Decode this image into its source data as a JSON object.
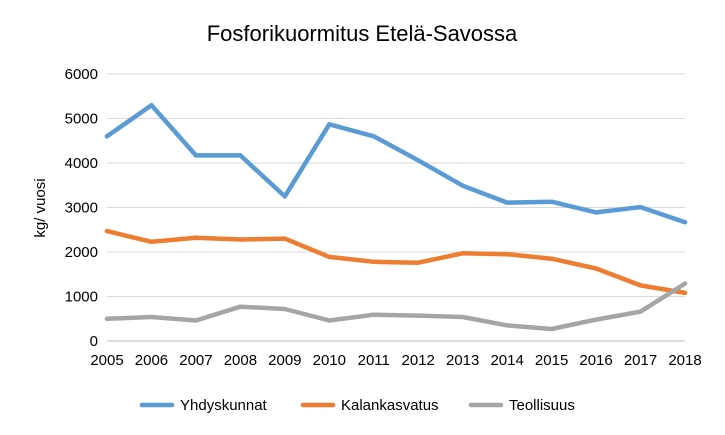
{
  "chart_data": {
    "type": "line",
    "title": "Fosforikuormitus Etelä-Savossa",
    "xlabel": "",
    "ylabel": "kg/ vuosi",
    "x": [
      2005,
      2006,
      2007,
      2008,
      2009,
      2010,
      2011,
      2012,
      2013,
      2014,
      2015,
      2016,
      2017,
      2018
    ],
    "ylim": [
      0,
      6000
    ],
    "yticks": [
      0,
      1000,
      2000,
      3000,
      4000,
      5000,
      6000
    ],
    "grid": true,
    "legend_position": "bottom",
    "series": [
      {
        "name": "Yhdyskunnat",
        "color": "#5b9bd5",
        "values": [
          4600,
          5300,
          4170,
          4170,
          3250,
          4870,
          4600,
          4060,
          3490,
          3110,
          3130,
          2890,
          3010,
          2670
        ]
      },
      {
        "name": "Kalankasvatus",
        "color": "#ed7d31",
        "values": [
          2470,
          2230,
          2320,
          2280,
          2300,
          1890,
          1780,
          1760,
          1970,
          1950,
          1850,
          1630,
          1250,
          1080
        ]
      },
      {
        "name": "Teollisuus",
        "color": "#a5a5a5",
        "values": [
          500,
          540,
          460,
          770,
          720,
          460,
          590,
          570,
          540,
          350,
          270,
          480,
          660,
          1290
        ]
      }
    ]
  }
}
